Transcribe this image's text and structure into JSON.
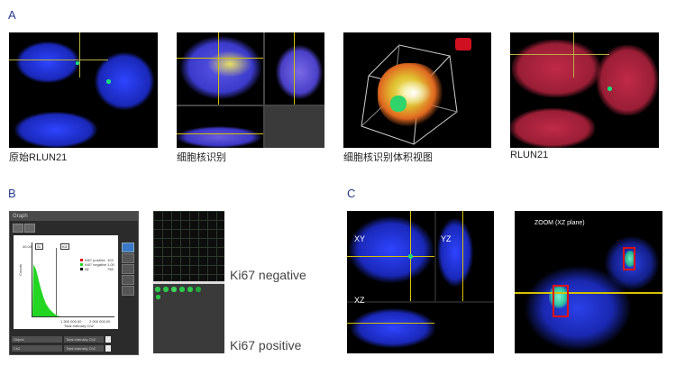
{
  "panel_letters": {
    "a": "A",
    "b": "B",
    "c": "C"
  },
  "captions": {
    "original": "原始RLUN21",
    "nucleus_id": "细胞核识别",
    "nucleus_volume": "细胞核识别体积视图",
    "rlun21": "RLUN21"
  },
  "graph_window": {
    "title": "Graph",
    "box_left": "Sl",
    "box_right": "Ki1",
    "y_axis_label": "Counts",
    "y_tick": "40.00",
    "x_ticks": [
      "1 300 000.00",
      "2 000 000.00"
    ],
    "x_axis_label": "Total Intensity Ch2",
    "legend": [
      "Ki67 positive",
      "Ki67 negative",
      "All"
    ],
    "legend_values": [
      "103",
      "1.00",
      "756"
    ],
    "controls": {
      "row1_left": "Object",
      "row1_right": "Total Intensity Ch2",
      "row2_left": "Ch2",
      "row2_right": "Total Intensity Ch2"
    }
  },
  "ki67": {
    "negative": "Ki67 negative",
    "positive": "Ki67 positive"
  },
  "ortho_labels": {
    "xy": "XY",
    "yz": "YZ",
    "xz": "XZ"
  },
  "zoom_label": "ZOOM (XZ plane)",
  "colors": {
    "nucleus_blue": "#2236d8",
    "rlun21_red": "#b0243a",
    "marker_green": "#19e07a",
    "crosshair_yellow": "#d6c000",
    "highlight_red": "#e01010",
    "hist_green": "#22d622",
    "panel_letter": "#2a3a8c"
  }
}
